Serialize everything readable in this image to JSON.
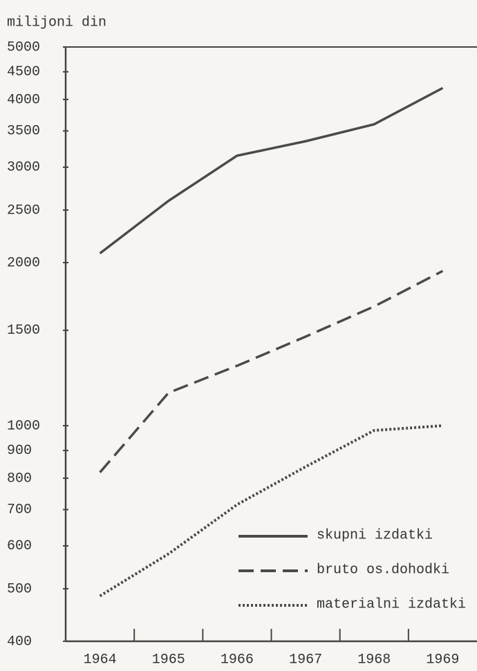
{
  "chart_data": {
    "type": "line",
    "y_label": "milijoni din",
    "categories": [
      "1964",
      "1965",
      "1966",
      "1967",
      "1968",
      "1969"
    ],
    "log_y": true,
    "grid": false,
    "legend": "lower right",
    "ylim": [
      400,
      5000
    ],
    "yticks": [
      400,
      500,
      600,
      700,
      800,
      900,
      1000,
      1500,
      2000,
      2500,
      3000,
      3500,
      4000,
      4500,
      5000
    ],
    "series": [
      {
        "name": "skupni izdatki",
        "color": "#4a4a4a",
        "style": "solid",
        "values": [
          2080,
          2600,
          3150,
          3350,
          3600,
          4200
        ]
      },
      {
        "name": "bruto os.dohodki",
        "color": "#4a4a4a",
        "style": "dashed",
        "values": [
          820,
          1150,
          1290,
          1460,
          1660,
          1930
        ]
      },
      {
        "name": "materialni izdatki",
        "color": "#4a4a4a",
        "style": "dotted",
        "values": [
          485,
          580,
          715,
          840,
          980,
          1000
        ]
      }
    ]
  }
}
